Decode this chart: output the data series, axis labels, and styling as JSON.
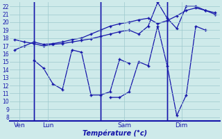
{
  "xlabel": "Température (°c)",
  "background_color": "#ceeaea",
  "grid_color": "#9cc8cc",
  "line_color": "#1515aa",
  "ylim": [
    7.5,
    22.5
  ],
  "yticks": [
    8,
    9,
    10,
    11,
    12,
    13,
    14,
    15,
    16,
    17,
    18,
    19,
    20,
    21,
    22
  ],
  "day_labels": [
    "Ven",
    "Lun",
    "Sam",
    "Dim"
  ],
  "day_positions": [
    0.5,
    3.5,
    11.5,
    17.5
  ],
  "vline_positions": [
    2,
    9,
    16
  ],
  "n_points": 22,
  "series": [
    [
      16.5,
      17.0,
      17.5,
      17.2,
      17.3,
      17.5,
      17.8,
      18.0,
      18.5,
      19.0,
      19.5,
      19.8,
      20.0,
      20.3,
      20.5,
      19.8,
      20.2,
      20.8,
      21.5,
      21.8,
      21.5,
      21.0
    ],
    [
      17.8,
      17.5,
      17.3,
      17.0,
      17.2,
      17.3,
      17.5,
      17.7,
      17.9,
      18.2,
      18.5,
      18.8,
      19.0,
      18.5,
      19.5,
      22.5,
      20.5,
      19.2,
      22.0,
      22.0,
      21.5,
      21.2
    ],
    [
      null,
      null,
      15.2,
      14.2,
      12.2,
      11.5,
      16.5,
      16.2,
      10.8,
      10.8,
      11.2,
      15.3,
      14.8,
      null,
      null,
      null,
      null,
      null,
      null,
      null,
      null,
      null
    ],
    [
      null,
      null,
      null,
      null,
      null,
      null,
      null,
      null,
      null,
      null,
      10.5,
      10.5,
      11.2,
      15.0,
      14.5,
      19.5,
      14.5,
      8.2,
      10.8,
      19.5,
      19.0,
      null
    ]
  ]
}
